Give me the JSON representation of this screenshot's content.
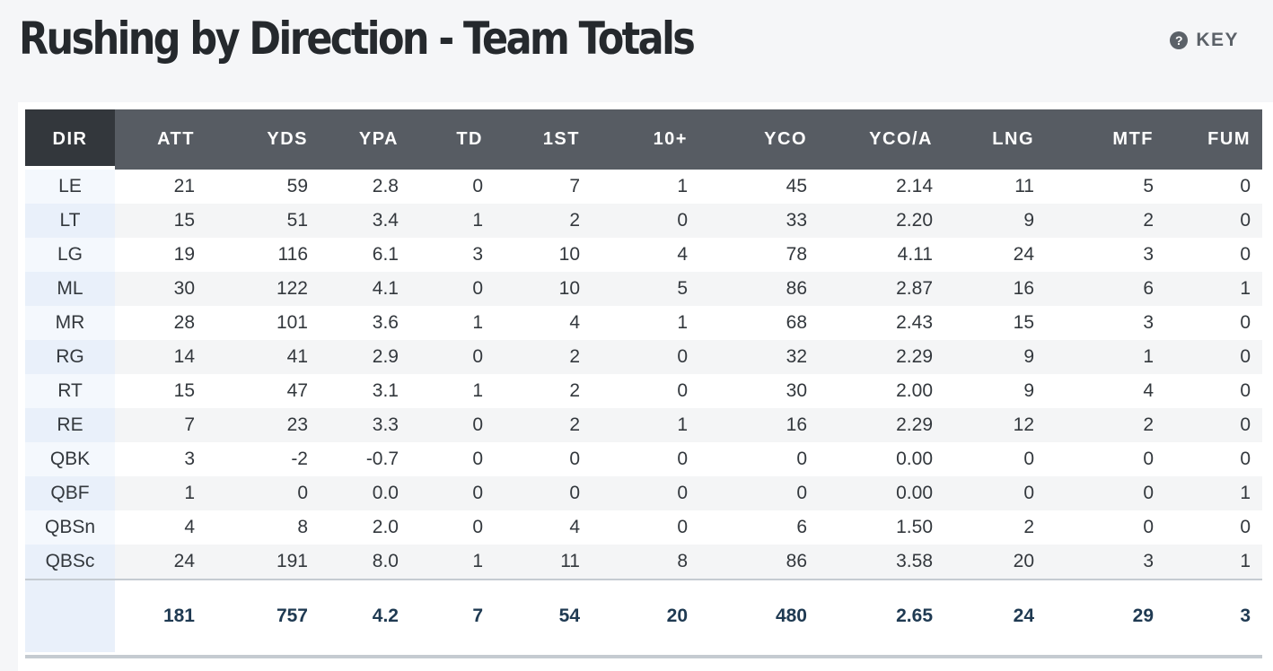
{
  "title": "Rushing by Direction - Team Totals",
  "key": {
    "icon": "question-circle-icon",
    "icon_glyph": "?",
    "label": "KEY"
  },
  "colors": {
    "header_bg": "#575c63",
    "dir_header_bg": "#33373c",
    "dir_col_bg": "#e9f0fa",
    "totals_text": "#1f3a52"
  },
  "table": {
    "columns": [
      "DIR",
      "ATT",
      "YDS",
      "YPA",
      "TD",
      "1ST",
      "10+",
      "YCO",
      "YCO/A",
      "LNG",
      "MTF",
      "FUM"
    ],
    "rows": [
      [
        "LE",
        "21",
        "59",
        "2.8",
        "0",
        "7",
        "1",
        "45",
        "2.14",
        "11",
        "5",
        "0"
      ],
      [
        "LT",
        "15",
        "51",
        "3.4",
        "1",
        "2",
        "0",
        "33",
        "2.20",
        "9",
        "2",
        "0"
      ],
      [
        "LG",
        "19",
        "116",
        "6.1",
        "3",
        "10",
        "4",
        "78",
        "4.11",
        "24",
        "3",
        "0"
      ],
      [
        "ML",
        "30",
        "122",
        "4.1",
        "0",
        "10",
        "5",
        "86",
        "2.87",
        "16",
        "6",
        "1"
      ],
      [
        "MR",
        "28",
        "101",
        "3.6",
        "1",
        "4",
        "1",
        "68",
        "2.43",
        "15",
        "3",
        "0"
      ],
      [
        "RG",
        "14",
        "41",
        "2.9",
        "0",
        "2",
        "0",
        "32",
        "2.29",
        "9",
        "1",
        "0"
      ],
      [
        "RT",
        "15",
        "47",
        "3.1",
        "1",
        "2",
        "0",
        "30",
        "2.00",
        "9",
        "4",
        "0"
      ],
      [
        "RE",
        "7",
        "23",
        "3.3",
        "0",
        "2",
        "1",
        "16",
        "2.29",
        "12",
        "2",
        "0"
      ],
      [
        "QBK",
        "3",
        "-2",
        "-0.7",
        "0",
        "0",
        "0",
        "0",
        "0.00",
        "0",
        "0",
        "0"
      ],
      [
        "QBF",
        "1",
        "0",
        "0.0",
        "0",
        "0",
        "0",
        "0",
        "0.00",
        "0",
        "0",
        "1"
      ],
      [
        "QBSn",
        "4",
        "8",
        "2.0",
        "0",
        "4",
        "0",
        "6",
        "1.50",
        "2",
        "0",
        "0"
      ],
      [
        "QBSc",
        "24",
        "191",
        "8.0",
        "1",
        "11",
        "8",
        "86",
        "3.58",
        "20",
        "3",
        "1"
      ]
    ],
    "totals": [
      "",
      "181",
      "757",
      "4.2",
      "7",
      "54",
      "20",
      "480",
      "2.65",
      "24",
      "29",
      "3"
    ]
  }
}
